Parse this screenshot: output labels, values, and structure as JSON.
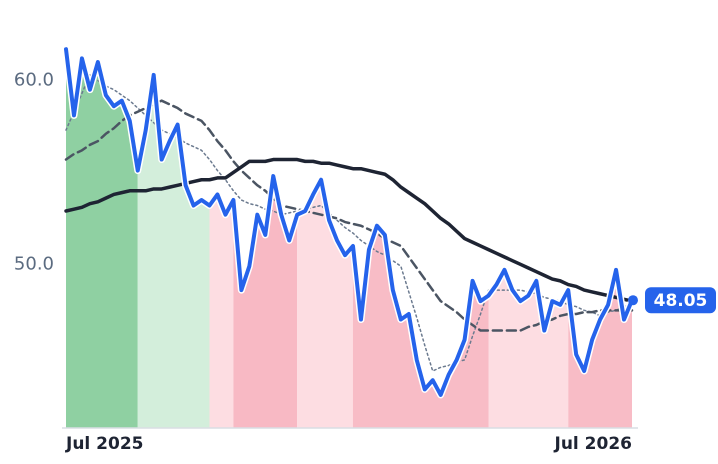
{
  "chart_data": {
    "type": "line",
    "categories": [
      "Jul 2025",
      null,
      null,
      null,
      null,
      null,
      null,
      null,
      null,
      null,
      null,
      null,
      null,
      null,
      null,
      null,
      null,
      null,
      null,
      null,
      null,
      null,
      null,
      null,
      null,
      null,
      null,
      null,
      null,
      null,
      null,
      null,
      null,
      null,
      null,
      null,
      null,
      null,
      null,
      null,
      null,
      null,
      null,
      null,
      null,
      null,
      null,
      null,
      null,
      null,
      null,
      null,
      null,
      null,
      null,
      null,
      null,
      null,
      null,
      null,
      null,
      null,
      null,
      null,
      null,
      null,
      null,
      null,
      null,
      null,
      null,
      "Jul 2026"
    ],
    "series": [
      {
        "color": "#2563eb",
        "style": "solid",
        "width": 4,
        "values": [
          61.7,
          58.1,
          61.2,
          59.5,
          61.0,
          59.2,
          58.6,
          58.9,
          57.8,
          55.1,
          57.3,
          60.3,
          55.7,
          56.7,
          57.6,
          54.3,
          53.2,
          53.5,
          53.2,
          53.8,
          52.7,
          53.5,
          48.6,
          49.9,
          52.7,
          51.6,
          54.8,
          52.7,
          51.3,
          52.7,
          52.9,
          53.8,
          54.6,
          52.4,
          51.3,
          50.5,
          51.0,
          47.0,
          50.8,
          52.1,
          51.6,
          48.6,
          47.0,
          47.3,
          44.8,
          43.2,
          43.7,
          42.9,
          44.0,
          44.8,
          45.9,
          49.1,
          48.0,
          48.3,
          48.9,
          49.7,
          48.6,
          48.0,
          48.3,
          49.1,
          46.4,
          48.0,
          47.8,
          48.6,
          45.1,
          44.2,
          45.9,
          47.0,
          47.8,
          49.7,
          47.0,
          48.05
        ]
      },
      {
        "color": "#1e2433",
        "style": "solid",
        "width": 3.5,
        "values": [
          52.9,
          53.0,
          53.1,
          53.3,
          53.4,
          53.6,
          53.8,
          53.9,
          54.0,
          54.0,
          54.0,
          54.1,
          54.1,
          54.2,
          54.3,
          54.4,
          54.5,
          54.6,
          54.6,
          54.7,
          54.7,
          55.0,
          55.3,
          55.6,
          55.6,
          55.6,
          55.7,
          55.7,
          55.7,
          55.7,
          55.6,
          55.6,
          55.5,
          55.5,
          55.4,
          55.3,
          55.2,
          55.2,
          55.1,
          55.0,
          54.9,
          54.6,
          54.2,
          53.9,
          53.6,
          53.3,
          52.9,
          52.5,
          52.2,
          51.8,
          51.4,
          51.2,
          51.0,
          50.8,
          50.6,
          50.4,
          50.2,
          50.0,
          49.8,
          49.6,
          49.4,
          49.2,
          49.1,
          48.9,
          48.8,
          48.6,
          48.5,
          48.4,
          48.3,
          48.2,
          48.1,
          48.0
        ]
      },
      {
        "color": "#4b5563",
        "style": "dashed",
        "width": 2.5,
        "values": [
          55.7,
          56.0,
          56.2,
          56.5,
          56.7,
          57.1,
          57.4,
          57.8,
          58.1,
          58.3,
          58.5,
          58.7,
          58.9,
          58.7,
          58.5,
          58.2,
          58.0,
          57.8,
          57.3,
          56.7,
          56.2,
          55.6,
          55.1,
          54.7,
          54.3,
          54.0,
          53.6,
          53.2,
          53.1,
          53.0,
          52.9,
          52.8,
          52.7,
          52.6,
          52.5,
          52.3,
          52.2,
          52.1,
          51.9,
          51.7,
          51.4,
          51.2,
          51.0,
          50.4,
          49.8,
          49.2,
          48.6,
          48.0,
          47.7,
          47.4,
          47.0,
          46.7,
          46.4,
          46.4,
          46.4,
          46.4,
          46.4,
          46.4,
          46.6,
          46.7,
          46.9,
          47.0,
          47.2,
          47.3,
          47.3,
          47.4,
          47.4,
          47.5,
          47.5,
          47.5,
          47.5,
          47.5
        ]
      },
      {
        "color": "#6b7a8f",
        "style": "dotted",
        "width": 1.5,
        "values": [
          57.3,
          58.3,
          59.3,
          60.3,
          60.0,
          59.7,
          59.5,
          59.2,
          58.9,
          58.5,
          58.1,
          57.7,
          57.3,
          57.1,
          56.9,
          56.6,
          56.4,
          56.2,
          55.7,
          55.1,
          54.6,
          54.0,
          53.5,
          53.3,
          53.2,
          53.0,
          52.9,
          52.7,
          52.8,
          52.9,
          53.0,
          53.1,
          53.2,
          52.8,
          52.4,
          52.0,
          51.7,
          51.3,
          51.0,
          50.7,
          50.5,
          50.2,
          49.9,
          48.5,
          47.1,
          45.6,
          44.2,
          44.4,
          44.5,
          44.7,
          44.8,
          46.1,
          47.3,
          48.6,
          48.6,
          48.6,
          48.6,
          48.6,
          48.5,
          48.4,
          48.2,
          48.1,
          48.0,
          47.8,
          47.7,
          47.5,
          47.4,
          47.2,
          47.4,
          47.5,
          47.7,
          47.8
        ]
      }
    ],
    "regions": [
      {
        "from": 0,
        "to": 9,
        "color": "#8fd0a2"
      },
      {
        "from": 9,
        "to": 18,
        "color": "#d3eedb"
      },
      {
        "from": 18,
        "to": 21,
        "color": "#fddde2"
      },
      {
        "from": 21,
        "to": 29,
        "color": "#f8b9c4"
      },
      {
        "from": 29,
        "to": 36,
        "color": "#fddde2"
      },
      {
        "from": 36,
        "to": 53,
        "color": "#f8bcc6"
      },
      {
        "from": 53,
        "to": 63,
        "color": "#fddde2"
      },
      {
        "from": 63,
        "to": 71,
        "color": "#f8bcc6"
      }
    ],
    "ylim": [
      41.1,
      62.2
    ],
    "yticks": [
      {
        "value": 50,
        "label": "50.0"
      },
      {
        "value": 60,
        "label": "60.0"
      }
    ],
    "grid": false
  }
}
